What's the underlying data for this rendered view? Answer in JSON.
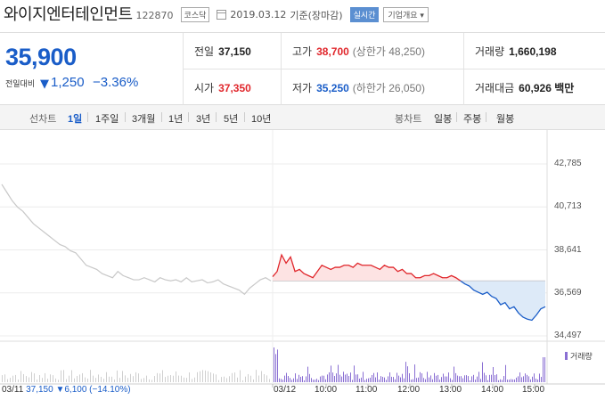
{
  "header": {
    "title": "와이지엔터테인먼트",
    "code": "122870",
    "market": "코스닥",
    "date": "2019.03.12",
    "basis": "기준(장마감)",
    "realtime": "실시간",
    "company_info": "기업개요"
  },
  "price": {
    "current": "35,900",
    "change_label": "전일대비",
    "change_dir": "▼",
    "change": "1,250",
    "change_pct": "−3.36%"
  },
  "stats": {
    "prev_close": {
      "label": "전일",
      "value": "37,150"
    },
    "high": {
      "label": "고가",
      "value": "38,700",
      "sub": "(상한가 48,250)"
    },
    "volume": {
      "label": "거래량",
      "value": "1,660,198"
    },
    "open": {
      "label": "시가",
      "value": "37,350"
    },
    "low": {
      "label": "저가",
      "value": "35,250",
      "sub": "(하한가 26,050)"
    },
    "amount": {
      "label": "거래대금",
      "value": "60,926 백만"
    }
  },
  "periods": {
    "line_label": "선차트",
    "line_items": [
      "1일",
      "1주일",
      "3개월",
      "1년",
      "3년",
      "5년",
      "10년"
    ],
    "selected": "1일",
    "candle_label": "봉차트",
    "candle_items": [
      "일봉",
      "주봉",
      "월봉"
    ]
  },
  "chart_data": {
    "type": "line",
    "y_ticks": [
      "42,785",
      "40,713",
      "38,641",
      "36,569",
      "34,497"
    ],
    "ylim": [
      34497,
      42785
    ],
    "baseline": 37150,
    "x_ticks": [
      "03/11",
      "03/12",
      "10:00",
      "11:00",
      "12:00",
      "13:00",
      "14:00",
      "15:00"
    ],
    "prev_day_series": [
      41800,
      41400,
      41000,
      40700,
      40500,
      40200,
      39900,
      39700,
      39500,
      39300,
      39100,
      38900,
      38800,
      38600,
      38500,
      38200,
      37900,
      37800,
      37700,
      37500,
      37400,
      37300,
      37600,
      37400,
      37300,
      37200,
      37200,
      37300,
      37200,
      37100,
      37300,
      37200,
      37150,
      37200,
      37100,
      37300,
      37100,
      37150,
      37200,
      37050,
      37100,
      37200,
      37000,
      36900,
      36800,
      36700,
      36500,
      36800,
      37000,
      37200,
      37300,
      37150
    ],
    "today_series": [
      37350,
      37600,
      38400,
      38000,
      38300,
      37600,
      37700,
      37500,
      37400,
      37300,
      37600,
      37900,
      37800,
      37700,
      37800,
      37800,
      37900,
      37900,
      37800,
      38000,
      37900,
      37900,
      37900,
      37800,
      37700,
      37900,
      37800,
      37800,
      37600,
      37700,
      37500,
      37500,
      37300,
      37300,
      37400,
      37400,
      37500,
      37400,
      37300,
      37300,
      37400,
      37300,
      37150,
      37000,
      36900,
      36700,
      36600,
      36500,
      36600,
      36400,
      36300,
      36000,
      36100,
      35800,
      35900,
      35600,
      35400,
      35300,
      35250,
      35500,
      35800,
      35900
    ],
    "volume_label": "거래량",
    "prev_close_text": {
      "date": "03/11",
      "close": "37,150",
      "change": "▼6,100",
      "pct": "(−14.10%)"
    }
  },
  "colors": {
    "blue": "#1a5dc8",
    "red": "#e0262b",
    "purple": "#8a6fd3"
  }
}
